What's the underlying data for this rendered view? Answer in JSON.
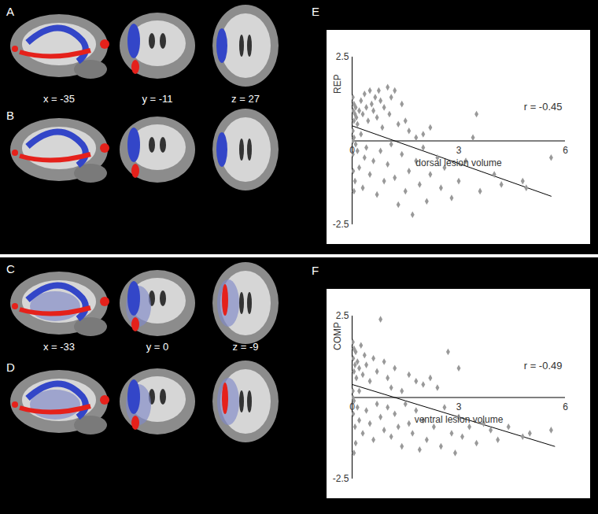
{
  "panels": [
    {
      "label": "A",
      "coordinates": [
        "x = -35",
        "y = -11",
        "z = 27"
      ]
    },
    {
      "label": "B"
    },
    {
      "label": "C",
      "coordinates": [
        "x = -33",
        "y = 0",
        "z = -9"
      ]
    },
    {
      "label": "D"
    }
  ],
  "chart_data": [
    {
      "type": "scatter",
      "panel": "E",
      "xlabel": "dorsal lesion volume",
      "ylabel": "REP",
      "annotation": "r = -0.45",
      "color": "#999999",
      "marker": "diamond",
      "xlim": [
        0,
        6
      ],
      "xticks": [
        0,
        3,
        6
      ],
      "ylim": [
        -2.5,
        2.5
      ],
      "yticks": [
        -2.5,
        2.5
      ],
      "x": [
        0.02,
        0.05,
        0.03,
        0.08,
        0.1,
        0.12,
        0.05,
        0.15,
        0.2,
        0.25,
        0.3,
        0.35,
        0.4,
        0.45,
        0.5,
        0.55,
        0.6,
        0.65,
        0.7,
        0.75,
        0.8,
        0.85,
        0.9,
        1.0,
        1.05,
        1.1,
        1.2,
        1.3,
        1.4,
        1.5,
        1.6,
        1.8,
        2.0,
        2.2,
        0.02,
        0.05,
        0.1,
        0.02,
        0.08,
        0.05,
        0.15,
        0.2,
        0.3,
        0.35,
        0.4,
        0.5,
        0.6,
        0.7,
        0.8,
        0.9,
        1.0,
        1.1,
        1.2,
        1.3,
        1.4,
        1.5,
        1.6,
        1.7,
        1.8,
        1.9,
        2.0,
        2.1,
        2.2,
        2.4,
        2.5,
        2.6,
        2.8,
        3.0,
        3.2,
        3.5,
        3.4,
        3.6,
        4.0,
        4.2,
        4.8,
        4.9,
        5.6,
        0.02,
        0.03,
        0.25
      ],
      "y": [
        1.3,
        1.1,
        0.9,
        0.8,
        1.0,
        0.7,
        0.6,
        0.5,
        0.9,
        1.2,
        0.8,
        1.4,
        1.0,
        0.6,
        1.5,
        1.1,
        0.9,
        1.3,
        0.7,
        1.5,
        1.2,
        0.4,
        1.0,
        1.6,
        0.8,
        1.3,
        1.5,
        0.5,
        1.1,
        0.6,
        0.3,
        0.1,
        0.2,
        0.4,
        0.3,
        0.1,
        -0.1,
        -0.4,
        -1.2,
        -1.5,
        -0.3,
        -0.8,
        -1.4,
        -0.5,
        -0.2,
        -1.0,
        -0.6,
        -1.6,
        -0.3,
        -1.2,
        -0.7,
        -0.1,
        -1.1,
        -1.9,
        -0.4,
        -1.5,
        -0.9,
        -2.2,
        -0.6,
        -1.3,
        -0.2,
        -1.8,
        -1.0,
        -0.5,
        -1.4,
        -0.8,
        -1.7,
        -1.2,
        -0.6,
        0.8,
        0.1,
        -1.5,
        -1.0,
        -1.3,
        -1.2,
        -1.4,
        -0.5,
        0.0,
        -0.9,
        0.2
      ],
      "trendline": {
        "x": [
          0,
          5.6
        ],
        "y": [
          0.45,
          -1.65
        ]
      }
    },
    {
      "type": "scatter",
      "panel": "F",
      "xlabel": "ventral lesion volume",
      "ylabel": "COMP",
      "annotation": "r = -0.49",
      "color": "#999999",
      "marker": "diamond",
      "xlim": [
        0,
        6
      ],
      "xticks": [
        0,
        3,
        6
      ],
      "ylim": [
        -2.5,
        2.5
      ],
      "yticks": [
        -2.5,
        2.5
      ],
      "x": [
        0.02,
        0.05,
        0.03,
        0.08,
        0.1,
        0.05,
        0.12,
        0.15,
        0.2,
        0.25,
        0.3,
        0.35,
        0.4,
        0.5,
        0.6,
        0.7,
        0.8,
        0.9,
        1.0,
        1.1,
        1.2,
        1.4,
        1.6,
        1.8,
        2.0,
        2.2,
        2.4,
        2.7,
        3.0,
        0.02,
        0.05,
        0.03,
        0.08,
        0.1,
        0.05,
        0.15,
        0.2,
        0.3,
        0.4,
        0.5,
        0.6,
        0.7,
        0.8,
        0.9,
        1.0,
        1.1,
        1.2,
        1.3,
        1.4,
        1.5,
        1.6,
        1.7,
        1.8,
        1.9,
        2.0,
        2.1,
        2.3,
        2.5,
        2.6,
        2.8,
        2.9,
        3.0,
        3.1,
        3.3,
        3.5,
        3.7,
        3.9,
        4.1,
        4.4,
        4.8,
        5.0,
        5.6,
        0.02,
        0.2
      ],
      "y": [
        1.7,
        1.5,
        1.2,
        1.0,
        1.4,
        0.8,
        0.6,
        1.1,
        0.9,
        1.6,
        0.7,
        1.3,
        1.0,
        0.5,
        1.2,
        0.8,
        2.4,
        1.1,
        0.6,
        0.3,
        0.9,
        0.2,
        0.7,
        0.5,
        0.4,
        0.6,
        0.3,
        1.4,
        0.9,
        0.2,
        -0.1,
        -0.5,
        -0.9,
        -1.4,
        -1.7,
        -0.3,
        -0.7,
        -1.1,
        -0.4,
        -0.8,
        -1.3,
        -0.2,
        -0.6,
        -1.0,
        -0.3,
        -1.2,
        -0.5,
        -0.9,
        -1.5,
        -0.2,
        -0.8,
        -1.1,
        -0.4,
        -1.6,
        -0.7,
        -1.3,
        -0.9,
        -1.5,
        -0.3,
        -1.1,
        -1.7,
        -0.6,
        -1.2,
        -0.9,
        -1.4,
        -0.8,
        -1.0,
        -1.3,
        -0.9,
        -1.2,
        -1.1,
        -1.0,
        0.0,
        0.2
      ],
      "trendline": {
        "x": [
          0,
          5.7
        ],
        "y": [
          0.4,
          -1.5
        ]
      }
    }
  ]
}
